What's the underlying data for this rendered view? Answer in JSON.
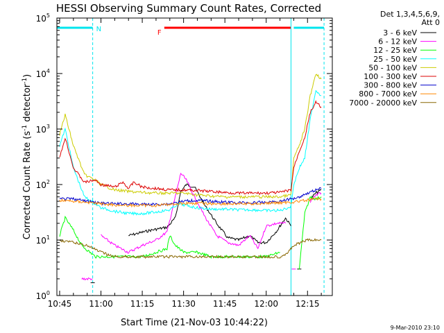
{
  "chart_data": {
    "type": "line",
    "title": "HESSI Observing Summary Count Rates, Corrected",
    "xlabel": "Start Time (21-Nov-03 10:44:22)",
    "ylabel_parts": [
      "Corrected Count Rate (s",
      "-1",
      " detector",
      "-1",
      ")"
    ],
    "y_scale": "log",
    "ylim": [
      1,
      100000
    ],
    "xlim": [
      "10:44",
      "12:24"
    ],
    "x_tick_labels": [
      "10:45",
      "11:00",
      "11:15",
      "11:30",
      "11:45",
      "12:00",
      "12:15"
    ],
    "y_tick_labels": [
      {
        "base": "10",
        "exp": "0"
      },
      {
        "base": "10",
        "exp": "1"
      },
      {
        "base": "10",
        "exp": "2"
      },
      {
        "base": "10",
        "exp": "3"
      },
      {
        "base": "10",
        "exp": "4"
      },
      {
        "base": "10",
        "exp": "5"
      }
    ],
    "legend": {
      "header": [
        "Det 1,3,4,5,6,9,",
        "Att 0"
      ],
      "placement": "right"
    },
    "series": [
      {
        "name": "3 - 6 keV",
        "color": "#000000",
        "x": [
          "10:45",
          "10:53",
          "10:57",
          "10:58",
          "11:02",
          "11:10",
          "11:18",
          "11:24",
          "11:27",
          "11:29",
          "11:31",
          "11:34",
          "11:38",
          "11:42",
          "11:46",
          "11:50",
          "11:54",
          "11:57",
          "12:00",
          "12:04",
          "12:07",
          "12:09",
          "12:10",
          "12:12",
          "12:14",
          "12:16",
          "12:18",
          "12:20"
        ],
        "y": [
          null,
          null,
          1.7,
          null,
          null,
          12,
          15,
          17,
          25,
          75,
          100,
          90,
          40,
          20,
          11,
          10,
          12,
          9,
          9,
          15,
          25,
          18,
          null,
          3,
          null,
          55,
          70,
          80
        ]
      },
      {
        "name": "6 - 12 keV",
        "color": "#ff00ff",
        "x": [
          "10:53",
          "10:57",
          "10:58",
          "11:00",
          "11:05",
          "11:10",
          "11:15",
          "11:20",
          "11:24",
          "11:27",
          "11:29",
          "11:31",
          "11:34",
          "11:38",
          "11:42",
          "11:46",
          "11:50",
          "11:54",
          "11:57",
          "12:00",
          "12:04",
          "12:07",
          "12:09",
          "12:10",
          "12:12",
          "12:14",
          "12:16",
          "12:18",
          "12:20"
        ],
        "y": [
          2,
          2,
          null,
          12,
          8,
          6,
          8,
          10,
          14,
          60,
          160,
          120,
          60,
          25,
          12,
          9,
          8,
          12,
          7,
          18,
          20,
          20,
          null,
          3,
          null,
          null,
          50,
          65,
          70
        ]
      },
      {
        "name": "12 - 25 keV",
        "color": "#00ff00",
        "x": [
          "10:45",
          "10:47",
          "10:50",
          "10:53",
          "10:56",
          "10:58",
          "11:00",
          "11:05",
          "11:10",
          "11:15",
          "11:20",
          "11:24",
          "11:25",
          "11:27",
          "11:30",
          "11:35",
          "11:40",
          "11:45",
          "11:50",
          "11:55",
          "12:00",
          "12:05",
          "12:09",
          "12:10",
          "12:12",
          "12:14",
          "12:16",
          "12:18",
          "12:20"
        ],
        "y": [
          12,
          25,
          15,
          8,
          6,
          5,
          5,
          5,
          5,
          5,
          6,
          7,
          12,
          8,
          6,
          6,
          5,
          5,
          5,
          5,
          5,
          6,
          null,
          null,
          3,
          30,
          60,
          55,
          60
        ]
      },
      {
        "name": "25 - 50 keV",
        "color": "#00ffff",
        "x": [
          "10:45",
          "10:47",
          "10:50",
          "10:54",
          "10:58",
          "11:00",
          "11:05",
          "11:10",
          "11:15",
          "11:20",
          "11:25",
          "11:28",
          "11:35",
          "11:40",
          "11:45",
          "11:50",
          "11:55",
          "12:00",
          "12:05",
          "12:09",
          "12:10",
          "12:12",
          "12:14",
          "12:16",
          "12:18",
          "12:20"
        ],
        "y": [
          500,
          1000,
          200,
          60,
          45,
          38,
          33,
          30,
          30,
          32,
          35,
          45,
          38,
          36,
          36,
          35,
          35,
          34,
          34,
          40,
          100,
          200,
          300,
          1500,
          5000,
          4000
        ]
      },
      {
        "name": "50 - 100 keV",
        "color": "#cccc00",
        "x": [
          "10:45",
          "10:47",
          "10:50",
          "10:54",
          "10:58",
          "11:00",
          "11:05",
          "11:10",
          "11:15",
          "11:20",
          "11:25",
          "11:30",
          "11:35",
          "11:40",
          "11:45",
          "11:50",
          "11:55",
          "12:00",
          "12:05",
          "12:09",
          "12:10",
          "12:12",
          "12:14",
          "12:16",
          "12:18",
          "12:20"
        ],
        "y": [
          800,
          1800,
          500,
          150,
          120,
          100,
          80,
          75,
          72,
          70,
          70,
          70,
          65,
          62,
          60,
          60,
          60,
          60,
          60,
          65,
          300,
          500,
          1000,
          4000,
          10000,
          8000
        ]
      },
      {
        "name": "100 - 300 keV",
        "color": "#dd0000",
        "x": [
          "10:45",
          "10:47",
          "10:50",
          "10:54",
          "10:58",
          "11:00",
          "11:05",
          "11:08",
          "11:10",
          "11:12",
          "11:15",
          "11:20",
          "11:25",
          "11:30",
          "11:35",
          "11:40",
          "11:45",
          "11:50",
          "11:55",
          "12:00",
          "12:05",
          "12:09",
          "12:10",
          "12:12",
          "12:14",
          "12:16",
          "12:18",
          "12:20"
        ],
        "y": [
          300,
          700,
          200,
          110,
          120,
          100,
          90,
          110,
          85,
          110,
          90,
          85,
          80,
          80,
          78,
          75,
          72,
          70,
          70,
          70,
          72,
          80,
          200,
          400,
          700,
          2000,
          3000,
          2500
        ]
      },
      {
        "name": "300 - 800 keV",
        "color": "#0000cc",
        "x": [
          "10:45",
          "10:50",
          "10:55",
          "11:00",
          "11:05",
          "11:10",
          "11:15",
          "11:20",
          "11:25",
          "11:30",
          "11:35",
          "11:40",
          "11:45",
          "11:50",
          "11:55",
          "12:00",
          "12:05",
          "12:09",
          "12:12",
          "12:15",
          "12:18",
          "12:20"
        ],
        "y": [
          55,
          55,
          50,
          46,
          45,
          45,
          44,
          44,
          45,
          50,
          52,
          50,
          48,
          47,
          47,
          48,
          50,
          55,
          60,
          70,
          80,
          85
        ]
      },
      {
        "name": "800 - 7000 keV",
        "color": "#ff8800",
        "x": [
          "10:45",
          "10:50",
          "10:55",
          "11:00",
          "11:05",
          "11:10",
          "11:15",
          "11:20",
          "11:25",
          "11:30",
          "11:35",
          "11:40",
          "11:45",
          "11:50",
          "11:55",
          "12:00",
          "12:05",
          "12:09",
          "12:12",
          "12:15",
          "12:18",
          "12:20"
        ],
        "y": [
          52,
          50,
          48,
          45,
          43,
          42,
          42,
          42,
          44,
          46,
          46,
          45,
          45,
          45,
          45,
          46,
          47,
          48,
          50,
          52,
          55,
          55
        ]
      },
      {
        "name": "7000 - 20000 keV",
        "color": "#886600",
        "x": [
          "10:45",
          "10:50",
          "10:55",
          "11:00",
          "11:05",
          "11:10",
          "11:15",
          "11:20",
          "11:25",
          "11:30",
          "11:35",
          "11:40",
          "11:45",
          "11:50",
          "11:55",
          "12:00",
          "12:05",
          "12:08",
          "12:10",
          "12:15",
          "12:18",
          "12:20"
        ],
        "y": [
          10,
          9,
          8,
          6,
          5,
          5,
          5,
          5,
          5,
          5,
          5,
          5,
          5,
          5,
          5,
          5,
          5,
          6,
          8,
          10,
          10,
          10
        ]
      }
    ],
    "flag_bars": [
      {
        "label": "",
        "color": "#00e5ee",
        "x": [
          "10:44",
          "10:57"
        ],
        "label_after": "N"
      },
      {
        "label": "F",
        "color": "#ff0000",
        "x": [
          "11:23",
          "12:09"
        ]
      },
      {
        "label": "",
        "color": "#00e5ee",
        "x": [
          "12:10",
          "12:21"
        ]
      }
    ],
    "vertical_markers": [
      {
        "x": "10:57",
        "color": "#00e5ee",
        "style": "dashed"
      },
      {
        "x": "12:09",
        "color": "#00e5ee",
        "style": "solid"
      },
      {
        "x": "12:21",
        "color": "#00e5ee",
        "style": "dashed"
      }
    ]
  },
  "footer": {
    "timestamp": "9-Mar-2010 23:10"
  }
}
